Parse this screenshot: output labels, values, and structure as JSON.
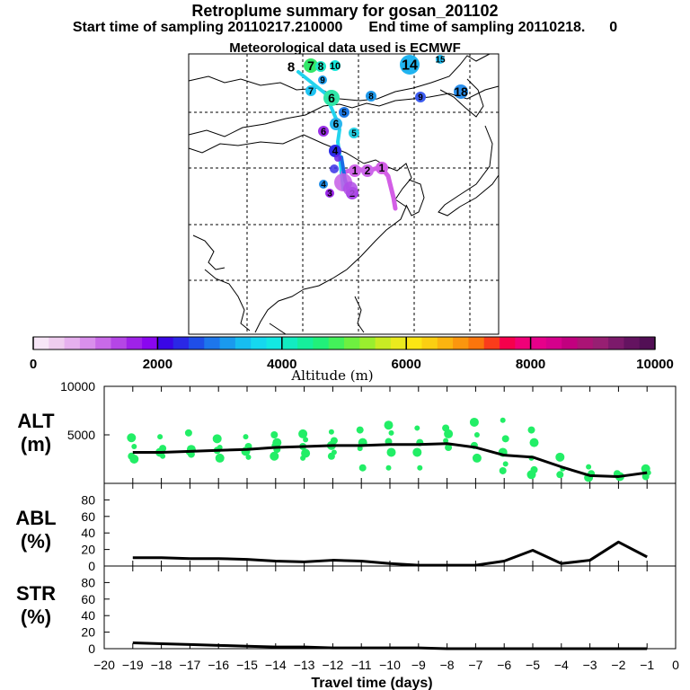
{
  "header": {
    "title": "Retroplume summary for gosan_201102",
    "start_label": "Start time of sampling 20110217.210000",
    "end_label": "End time of sampling 20110218.",
    "end_suffix": "0",
    "met_label": "Meteorological data used is ECMWF"
  },
  "colorbar": {
    "ticks": [
      "0",
      "2000",
      "4000",
      "6000",
      "8000",
      "10000"
    ],
    "label": "Altitude (m)",
    "colors": [
      "#f7e6f7",
      "#efcdef",
      "#e6b0ee",
      "#d98fec",
      "#c96ae8",
      "#b546e6",
      "#9f22e8",
      "#8a06ef",
      "#3a06e6",
      "#2a28e6",
      "#1f4ee8",
      "#1d76ec",
      "#1a9aee",
      "#17bdf0",
      "#15d8ef",
      "#13e8e3",
      "#12ecc1",
      "#15ef9c",
      "#21f07a",
      "#43f15a",
      "#6ef040",
      "#9aee2e",
      "#c8eb24",
      "#eaea1e",
      "#fbe614",
      "#fbcf12",
      "#fbb410",
      "#fb960e",
      "#fb750c",
      "#fa3c1b",
      "#f6004c",
      "#f00078",
      "#e6008a",
      "#d6008c",
      "#c2007f",
      "#ab1475",
      "#971f72",
      "#7c1a6b",
      "#641360",
      "#520f55"
    ]
  },
  "map": {
    "markers": [
      {
        "label": "8",
        "color": "#ffffff"
      },
      {
        "label": "7",
        "color": "#35e86a"
      },
      {
        "label": "8",
        "color": "#21e6c9"
      },
      {
        "label": "10",
        "color": "#14e6da"
      },
      {
        "label": "14",
        "color": "#20b4f0"
      },
      {
        "label": "15",
        "color": "#20c0f4"
      },
      {
        "label": "9",
        "color": "#1fa0f0"
      },
      {
        "label": "7",
        "color": "#1fc4f2"
      },
      {
        "label": "6",
        "color": "#2fe6a8"
      },
      {
        "label": "8",
        "color": "#1f98ea"
      },
      {
        "label": "9",
        "color": "#3c5cf0"
      },
      {
        "label": "18",
        "color": "#2a90ee"
      },
      {
        "label": "5",
        "color": "#1f7ae8"
      },
      {
        "label": "6",
        "color": "#2ab6ee"
      },
      {
        "label": "5",
        "color": "#25d0e4"
      },
      {
        "label": "6",
        "color": "#9a30e6"
      },
      {
        "label": "4",
        "color": "#2b2ce8"
      },
      {
        "label": "1",
        "color": "#d25ee6"
      },
      {
        "label": "2",
        "color": "#cc66ea"
      },
      {
        "label": "1",
        "color": "#d066e8"
      },
      {
        "label": "4",
        "color": "#1e8ce6"
      },
      {
        "label": "3",
        "color": "#9a26e8"
      },
      {
        "label": "2",
        "color": "#a846e6"
      }
    ]
  },
  "chart_data": [
    {
      "type": "line",
      "panel": "ALT",
      "ylabel": "ALT\n(m)",
      "ylabel_line1": "ALT",
      "ylabel_line2": "(m)",
      "ylim": [
        0,
        10000
      ],
      "yticks": [
        "10000",
        "5000"
      ],
      "x": [
        -19,
        -18,
        -17,
        -16,
        -15,
        -14,
        -13,
        -12,
        -11,
        -10,
        -9,
        -8,
        -7,
        -6,
        -5,
        -4,
        -3,
        -2,
        -1
      ],
      "values": [
        3200,
        3200,
        3300,
        3400,
        3500,
        3700,
        3800,
        3900,
        3900,
        4000,
        4000,
        4100,
        3700,
        2900,
        2700,
        1700,
        800,
        700,
        1100
      ],
      "scatter_series": [
        {
          "x": -19,
          "y": [
            4700,
            3800,
            2800,
            2500
          ]
        },
        {
          "x": -18,
          "y": [
            4800,
            3600,
            3200,
            2800
          ]
        },
        {
          "x": -17,
          "y": [
            5200,
            3500,
            3200,
            3000
          ]
        },
        {
          "x": -16,
          "y": [
            4600,
            3700,
            3400,
            2600
          ]
        },
        {
          "x": -15,
          "y": [
            4800,
            3800,
            3300,
            2700
          ]
        },
        {
          "x": -14,
          "y": [
            5000,
            4200,
            3900,
            3500,
            2800
          ]
        },
        {
          "x": -13,
          "y": [
            5100,
            4500,
            3800,
            3100,
            2600
          ]
        },
        {
          "x": -12,
          "y": [
            5300,
            4400,
            3900,
            3200,
            2800
          ]
        },
        {
          "x": -11,
          "y": [
            5500,
            4200,
            3600,
            1600
          ]
        },
        {
          "x": -10,
          "y": [
            6000,
            5200,
            4300,
            3200,
            1600
          ]
        },
        {
          "x": -9,
          "y": [
            5700,
            4200,
            3200,
            1600
          ]
        },
        {
          "x": -8,
          "y": [
            5700,
            5100,
            4400,
            3700
          ]
        },
        {
          "x": -7,
          "y": [
            6300,
            5000,
            3900,
            2600
          ]
        },
        {
          "x": -6,
          "y": [
            6500,
            4600,
            3200,
            2000,
            1300
          ]
        },
        {
          "x": -5,
          "y": [
            5500,
            4200,
            2600,
            1400,
            900
          ]
        },
        {
          "x": -4,
          "y": [
            2700,
            1500,
            900
          ]
        },
        {
          "x": -3,
          "y": [
            1700,
            1000,
            600
          ]
        },
        {
          "x": -2,
          "y": [
            1000,
            700
          ]
        },
        {
          "x": -1,
          "y": [
            1500,
            1100,
            700
          ]
        }
      ]
    },
    {
      "type": "line",
      "panel": "ABL",
      "ylabel_line1": "ABL",
      "ylabel_line2": "(%)",
      "ylim": [
        0,
        100
      ],
      "yticks": [
        "80",
        "60",
        "40",
        "20",
        "0"
      ],
      "x": [
        -19,
        -18,
        -17,
        -16,
        -15,
        -14,
        -13,
        -12,
        -11,
        -10,
        -9,
        -8,
        -7,
        -6,
        -5,
        -4,
        -3,
        -2,
        -1
      ],
      "values": [
        10,
        10,
        9,
        9,
        8,
        6,
        5,
        7,
        6,
        3,
        1,
        1,
        1,
        6,
        19,
        3,
        7,
        29,
        11
      ]
    },
    {
      "type": "line",
      "panel": "STR",
      "ylabel_line1": "STR",
      "ylabel_line2": "(%)",
      "ylim": [
        0,
        100
      ],
      "yticks": [
        "80",
        "60",
        "40",
        "20",
        "0"
      ],
      "x": [
        -19,
        -18,
        -17,
        -16,
        -15,
        -14,
        -13,
        -12,
        -11,
        -10,
        -9,
        -8,
        -7,
        -6,
        -5,
        -4,
        -3,
        -2,
        -1
      ],
      "values": [
        7,
        6,
        5,
        4,
        3,
        2,
        2,
        1,
        1,
        1,
        1,
        0,
        0,
        0,
        0,
        0,
        0,
        0,
        0
      ]
    }
  ],
  "xaxis": {
    "label": "Travel time (days)",
    "ticks": [
      "−20",
      "−19",
      "−18",
      "−17",
      "−16",
      "−15",
      "−14",
      "−13",
      "−12",
      "−11",
      "−10",
      "−9",
      "−8",
      "−7",
      "−6",
      "−5",
      "−4",
      "−3",
      "−2",
      "−1",
      "0"
    ],
    "values": [
      -20,
      -19,
      -18,
      -17,
      -16,
      -15,
      -14,
      -13,
      -12,
      -11,
      -10,
      -9,
      -8,
      -7,
      -6,
      -5,
      -4,
      -3,
      -2,
      -1,
      0
    ]
  },
  "style": {
    "line_color": "#000000",
    "scatter_color": "#22ee66"
  }
}
